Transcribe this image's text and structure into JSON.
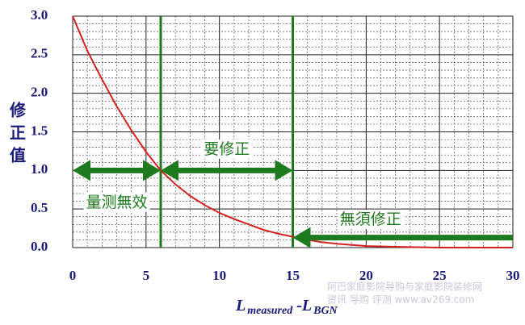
{
  "chart_data": {
    "type": "line",
    "y_label": "修正值",
    "x_label": {
      "main": "L",
      "sub1": "measured",
      "mid": " -L",
      "sub2": "BGN"
    },
    "x": [
      0,
      1,
      2,
      3,
      4,
      5,
      6,
      7,
      8,
      9,
      10,
      11,
      12,
      13,
      14,
      15,
      16,
      17,
      18,
      20,
      22,
      25,
      30
    ],
    "series": [
      {
        "color": "#d42020",
        "values": [
          3.0,
          2.55,
          2.18,
          1.83,
          1.52,
          1.24,
          1.0,
          0.82,
          0.67,
          0.55,
          0.45,
          0.37,
          0.3,
          0.23,
          0.18,
          0.14,
          0.1,
          0.07,
          0.05,
          0.02,
          0.01,
          0.0,
          0.0
        ]
      }
    ],
    "xlim": [
      0,
      30
    ],
    "xticks": [
      0,
      5,
      10,
      15,
      20,
      25,
      30
    ],
    "ylim": [
      0,
      3.0
    ],
    "yticks": [
      {
        "value": 0,
        "label": "0.0"
      },
      0.5,
      {
        "value": 1,
        "label": "1.0"
      },
      1.5,
      {
        "value": 2,
        "label": "2.0"
      },
      2.5,
      {
        "value": 3,
        "label": "3.0"
      }
    ],
    "grid": true,
    "accent_color": "#1e7a1e",
    "reference_lines": [
      6,
      15
    ],
    "arrows": [
      {
        "from": [
          0,
          1.0
        ],
        "to": [
          6,
          1.0
        ],
        "both": true,
        "text": "量测無效"
      },
      {
        "from": [
          6,
          1.0
        ],
        "to": [
          15,
          1.0
        ],
        "both": true,
        "text": "要修正"
      },
      {
        "from": [
          30,
          0.13
        ],
        "to": [
          15,
          0.13
        ],
        "both": false,
        "text": "無須修正"
      }
    ]
  },
  "watermark": [
    "阿巴家庭影院导购与家庭影院装修网",
    "资讯 导购 评测 www.av269.com"
  ]
}
